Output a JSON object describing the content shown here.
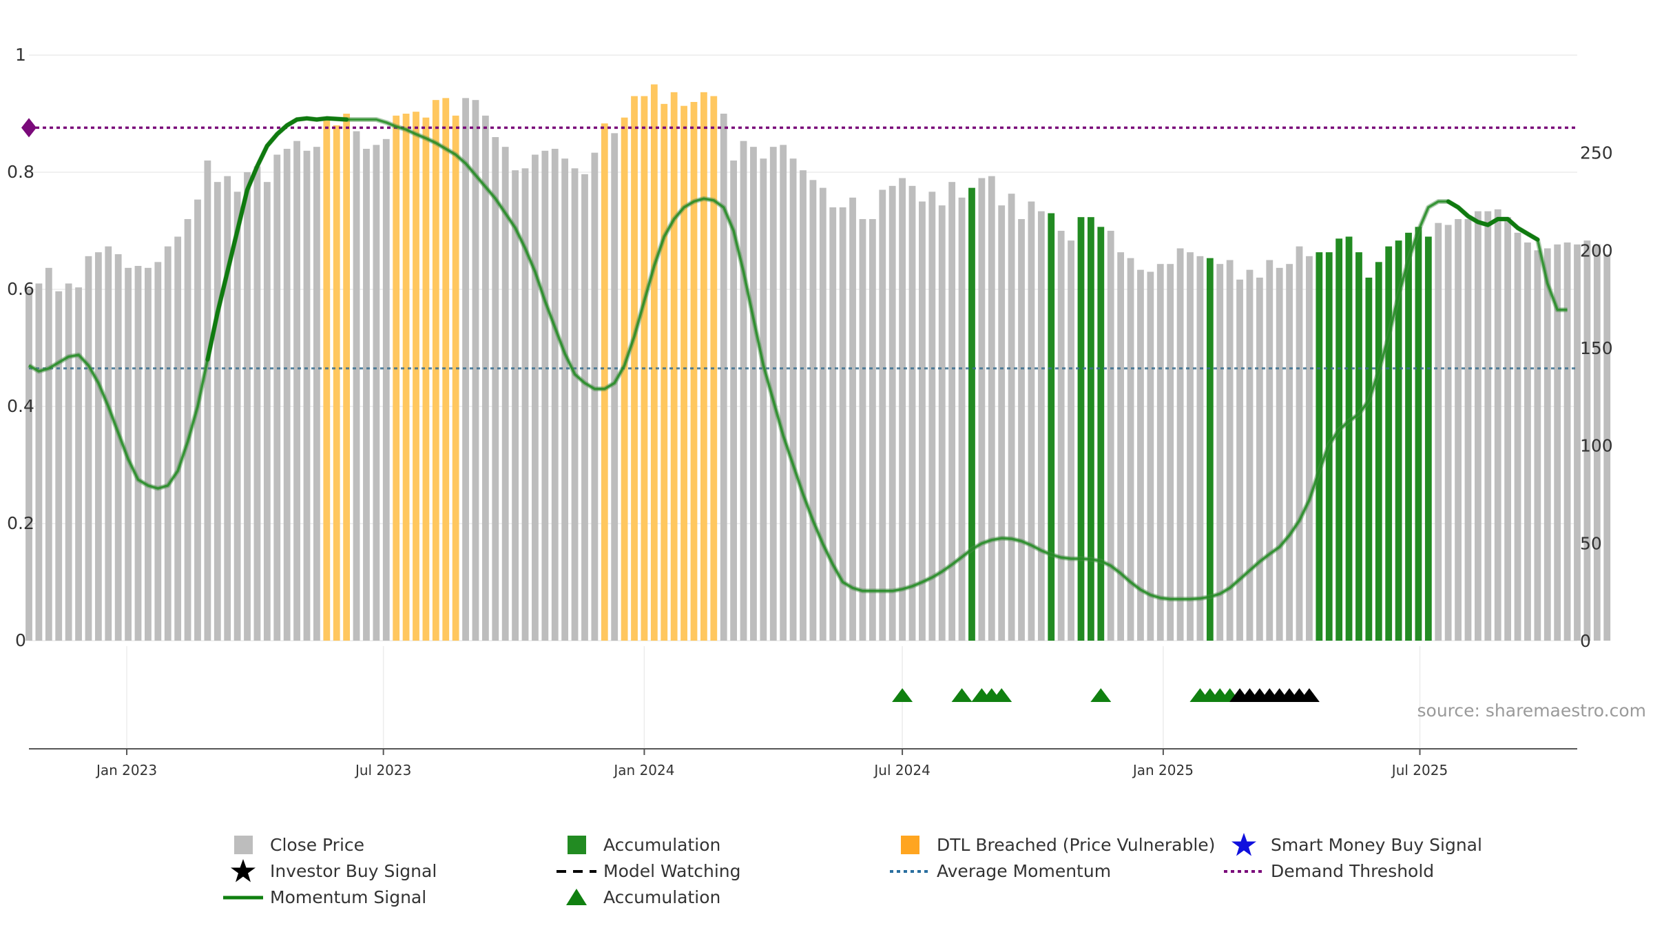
{
  "chart_data": {
    "type": "bar",
    "title": "",
    "source_note": "source: sharemaestro.com",
    "left_axis": {
      "range": [
        0,
        1
      ],
      "ticks": [
        "0",
        "0.2",
        "0.4",
        "0.6",
        "0.8",
        "1"
      ]
    },
    "right_axis": {
      "range": [
        0,
        300
      ],
      "ticks": [
        "0",
        "50",
        "100",
        "150",
        "200",
        "250"
      ]
    },
    "x_ticks": [
      {
        "label": "Jan 2023",
        "date": "2023-01-01"
      },
      {
        "label": "Jul 2023",
        "date": "2023-07-01"
      },
      {
        "label": "Jan 2024",
        "date": "2024-01-01"
      },
      {
        "label": "Jul 2024",
        "date": "2024-07-01"
      },
      {
        "label": "Jan 2025",
        "date": "2025-01-01"
      },
      {
        "label": "Jul 2025",
        "date": "2025-07-01"
      }
    ],
    "x_range": [
      "2022-10-24",
      "2025-10-20"
    ],
    "grid": true,
    "demand_threshold": 0.876,
    "average_momentum": 0.465,
    "close_price": {
      "start_date": "2022-10-24",
      "interval": "weekly",
      "values": [
        180,
        183,
        191,
        179,
        183,
        181,
        197,
        199,
        202,
        198,
        191,
        192,
        191,
        194,
        202,
        207,
        216,
        226,
        246,
        235,
        238,
        230,
        240,
        243,
        235,
        249,
        252,
        256,
        251,
        253,
        268,
        264,
        270,
        261,
        252,
        254,
        257,
        269,
        270,
        271,
        268,
        277,
        278,
        269,
        278,
        277,
        269,
        258,
        253,
        241,
        242,
        249,
        251,
        252,
        247,
        242,
        239,
        250,
        265,
        260,
        268,
        279,
        279,
        285,
        275,
        281,
        274,
        276,
        281,
        279,
        270,
        246,
        256,
        253,
        247,
        253,
        254,
        247,
        241,
        236,
        232,
        222,
        222,
        227,
        216,
        216,
        231,
        233,
        237,
        233,
        225,
        230,
        223,
        235,
        227,
        232,
        237,
        238,
        223,
        229,
        216,
        225,
        220,
        219,
        210,
        205,
        217,
        217,
        212,
        210,
        199,
        196,
        190,
        189,
        193,
        193,
        201,
        199,
        197,
        196,
        193,
        195,
        185,
        190,
        186,
        195,
        191,
        193,
        202,
        197,
        199,
        199,
        206,
        207,
        199,
        186,
        194,
        202,
        205,
        209,
        212,
        207,
        214,
        213,
        216,
        216,
        220,
        220,
        221,
        217,
        209,
        204,
        200,
        201,
        203,
        204,
        203,
        205,
        203,
        198
      ],
      "bar_category": [
        "price",
        "price",
        "price",
        "price",
        "price",
        "price",
        "price",
        "price",
        "price",
        "price",
        "price",
        "price",
        "price",
        "price",
        "price",
        "price",
        "price",
        "price",
        "price",
        "price",
        "price",
        "price",
        "price",
        "price",
        "price",
        "price",
        "price",
        "price",
        "price",
        "price",
        "dtl",
        "dtl",
        "dtl",
        "price",
        "price",
        "price",
        "price",
        "dtl",
        "dtl",
        "dtl",
        "dtl",
        "dtl",
        "dtl",
        "dtl",
        "price",
        "price",
        "price",
        "price",
        "price",
        "price",
        "price",
        "price",
        "price",
        "price",
        "price",
        "price",
        "price",
        "price",
        "dtl",
        "price",
        "dtl",
        "dtl",
        "dtl",
        "dtl",
        "dtl",
        "dtl",
        "dtl",
        "dtl",
        "dtl",
        "dtl",
        "price",
        "price",
        "price",
        "price",
        "price",
        "price",
        "price",
        "price",
        "price",
        "price",
        "price",
        "price",
        "price",
        "price",
        "price",
        "price",
        "price",
        "price",
        "price",
        "price",
        "price",
        "price",
        "price",
        "price",
        "price",
        "accumulation",
        "price",
        "price",
        "price",
        "price",
        "price",
        "price",
        "price",
        "accumulation",
        "price",
        "price",
        "accumulation",
        "accumulation",
        "accumulation",
        "price",
        "price",
        "price",
        "price",
        "price",
        "price",
        "price",
        "price",
        "price",
        "price",
        "accumulation",
        "price",
        "price",
        "price",
        "price",
        "price",
        "price",
        "price",
        "price",
        "price",
        "price",
        "accumulation",
        "accumulation",
        "accumulation",
        "accumulation",
        "accumulation",
        "accumulation",
        "accumulation",
        "accumulation",
        "accumulation",
        "accumulation",
        "accumulation",
        "accumulation",
        "price",
        "price",
        "price",
        "price",
        "price",
        "price",
        "price",
        "price",
        "price",
        "price",
        "price",
        "price",
        "price",
        "price",
        "price",
        "price",
        "price",
        "price",
        "price",
        "price",
        "price",
        "price",
        "price",
        "price"
      ]
    },
    "momentum_signal": {
      "values": [
        0.47,
        0.46,
        0.465,
        0.475,
        0.485,
        0.488,
        0.47,
        0.44,
        0.4,
        0.355,
        0.31,
        0.275,
        0.265,
        0.26,
        0.265,
        0.29,
        0.34,
        0.4,
        0.48,
        0.56,
        0.63,
        0.7,
        0.77,
        0.81,
        0.845,
        0.865,
        0.88,
        0.89,
        0.892,
        0.89,
        0.892,
        0.891,
        0.89,
        0.89,
        0.89,
        0.89,
        0.885,
        0.878,
        0.873,
        0.865,
        0.858,
        0.85,
        0.84,
        0.83,
        0.815,
        0.795,
        0.775,
        0.755,
        0.73,
        0.705,
        0.67,
        0.63,
        0.58,
        0.535,
        0.49,
        0.455,
        0.44,
        0.43,
        0.43,
        0.44,
        0.47,
        0.52,
        0.58,
        0.64,
        0.69,
        0.72,
        0.74,
        0.75,
        0.755,
        0.752,
        0.74,
        0.7,
        0.63,
        0.55,
        0.47,
        0.41,
        0.35,
        0.3,
        0.25,
        0.205,
        0.165,
        0.13,
        0.1,
        0.09,
        0.085,
        0.085,
        0.085,
        0.085,
        0.088,
        0.093,
        0.1,
        0.108,
        0.118,
        0.13,
        0.143,
        0.156,
        0.166,
        0.172,
        0.175,
        0.174,
        0.17,
        0.163,
        0.154,
        0.147,
        0.142,
        0.14,
        0.14,
        0.139,
        0.136,
        0.128,
        0.115,
        0.1,
        0.087,
        0.078,
        0.073,
        0.071,
        0.071,
        0.071,
        0.072,
        0.075,
        0.08,
        0.09,
        0.105,
        0.12,
        0.135,
        0.148,
        0.16,
        0.18,
        0.205,
        0.24,
        0.29,
        0.335,
        0.36,
        0.375,
        0.387,
        0.41,
        0.46,
        0.52,
        0.59,
        0.65,
        0.7,
        0.74,
        0.75,
        0.75,
        0.74,
        0.725,
        0.715,
        0.71,
        0.72,
        0.72,
        0.705,
        0.695,
        0.685,
        0.61,
        0.565,
        0.565
      ],
      "strong_ranges": [
        [
          18,
          32
        ],
        [
          143,
          152
        ]
      ]
    },
    "accumulation_markers": [
      88,
      94,
      96,
      97,
      98,
      108,
      118,
      119,
      120,
      121
    ],
    "investor_buy_markers": [
      122,
      123,
      124,
      125,
      126,
      127,
      128,
      129
    ],
    "demand_marker_index": 0,
    "colors": {
      "close_price": "#bdbdbd",
      "accumulation": "#228b22",
      "dtl_breached": "#ffc75f",
      "momentum": "#228b22",
      "average_momentum": "#3a6f8f",
      "demand_threshold": "#7a0a7a",
      "smart_money": "#1010dd",
      "investor_buy": "#000000"
    },
    "legend": [
      {
        "label": "Close Price",
        "symbol": "gray-square"
      },
      {
        "label": "Accumulation",
        "symbol": "green-square"
      },
      {
        "label": "DTL Breached (Price Vulnerable)",
        "symbol": "orange-square"
      },
      {
        "label": "Smart Money Buy Signal",
        "symbol": "blue-star"
      },
      {
        "label": "Investor Buy Signal",
        "symbol": "black-star"
      },
      {
        "label": "Model Watching",
        "symbol": "black-dash"
      },
      {
        "label": "Average Momentum",
        "symbol": "blue-dotted"
      },
      {
        "label": "Demand Threshold",
        "symbol": "purple-dotted"
      },
      {
        "label": "Momentum Signal",
        "symbol": "green-line"
      },
      {
        "label": "Accumulation",
        "symbol": "green-triangle"
      }
    ]
  }
}
